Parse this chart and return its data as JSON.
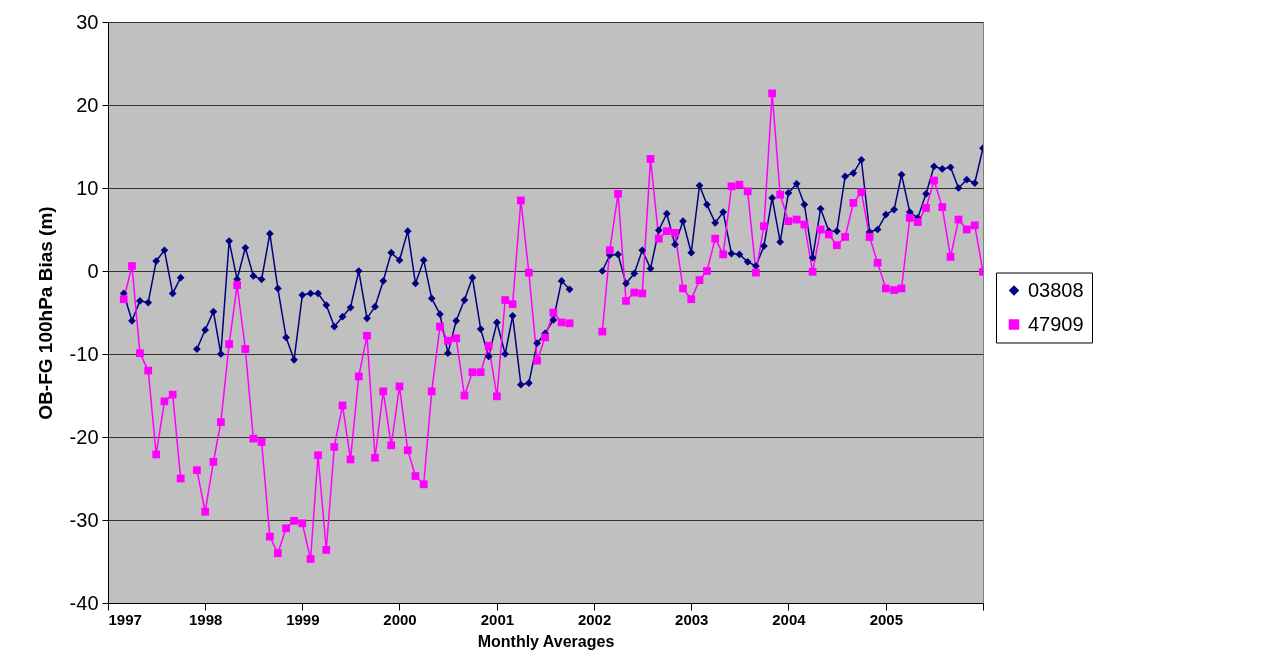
{
  "chart_data": {
    "type": "line",
    "xlabel": "Monthly Averages",
    "ylabel": "OB-FG 100hPa Bias (m)",
    "x": [
      "1997-03",
      "1997-04",
      "1997-05",
      "1997-06",
      "1997-07",
      "1997-08",
      "1997-09",
      "1997-10",
      "1997-11",
      "1997-12",
      "1998-01",
      "1998-02",
      "1998-03",
      "1998-04",
      "1998-05",
      "1998-06",
      "1998-07",
      "1998-08",
      "1998-09",
      "1998-10",
      "1998-11",
      "1998-12",
      "1999-01",
      "1999-02",
      "1999-03",
      "1999-04",
      "1999-05",
      "1999-06",
      "1999-07",
      "1999-08",
      "1999-09",
      "1999-10",
      "1999-11",
      "1999-12",
      "2000-01",
      "2000-02",
      "2000-03",
      "2000-04",
      "2000-05",
      "2000-06",
      "2000-07",
      "2000-08",
      "2000-09",
      "2000-10",
      "2000-11",
      "2000-12",
      "2001-01",
      "2001-02",
      "2001-03",
      "2001-04",
      "2001-05",
      "2001-06",
      "2001-07",
      "2001-08",
      "2001-09",
      "2001-10",
      "2001-11",
      "2001-12",
      "2002-01",
      "2002-02",
      "2002-03",
      "2002-04",
      "2002-05",
      "2002-06",
      "2002-07",
      "2002-08",
      "2002-09",
      "2002-10",
      "2002-11",
      "2002-12",
      "2003-01",
      "2003-02",
      "2003-03",
      "2003-04",
      "2003-05",
      "2003-06",
      "2003-07",
      "2003-08",
      "2003-09",
      "2003-10",
      "2003-11",
      "2003-12",
      "2004-01",
      "2004-02",
      "2004-03",
      "2004-04",
      "2004-05",
      "2004-06",
      "2004-07",
      "2004-08",
      "2004-09",
      "2004-10",
      "2004-11",
      "2004-12",
      "2005-01",
      "2005-02",
      "2005-03",
      "2005-04",
      "2005-05",
      "2005-06",
      "2005-07",
      "2005-08",
      "2005-09",
      "2005-10",
      "2005-11",
      "2005-12",
      "2006-01"
    ],
    "series": [
      {
        "name": "03808",
        "color": "#000080",
        "marker": "diamond",
        "values": [
          -2.7,
          -6.0,
          -3.6,
          -3.8,
          1.2,
          2.5,
          -2.7,
          -0.8,
          null,
          -9.4,
          -7.1,
          -4.9,
          -10.0,
          3.6,
          -1.0,
          2.8,
          -0.6,
          -1.0,
          4.5,
          -2.1,
          -8.0,
          -10.7,
          -2.9,
          -2.7,
          -2.7,
          -4.1,
          -6.7,
          -5.5,
          -4.4,
          0.0,
          -5.7,
          -4.3,
          -1.2,
          2.2,
          1.3,
          4.8,
          -1.5,
          1.3,
          -3.3,
          -5.2,
          -9.9,
          -6.0,
          -3.5,
          -0.8,
          -7.0,
          -10.3,
          -6.2,
          -10.0,
          -5.4,
          -13.7,
          -13.5,
          -8.7,
          -7.5,
          -5.9,
          -1.2,
          -2.2,
          null,
          null,
          null,
          0.0,
          1.9,
          2.0,
          -1.5,
          -0.3,
          2.5,
          0.3,
          4.9,
          6.9,
          3.2,
          6.0,
          2.2,
          10.3,
          8.0,
          5.8,
          7.1,
          2.1,
          2.0,
          1.1,
          0.6,
          3.0,
          8.8,
          3.5,
          9.4,
          10.5,
          8.0,
          1.6,
          7.5,
          4.8,
          4.8,
          11.4,
          11.8,
          13.4,
          4.7,
          5.0,
          6.8,
          7.4,
          11.6,
          7.1,
          6.4,
          9.3,
          12.6,
          12.3,
          12.5,
          10.0,
          11.0,
          10.6,
          14.8
        ]
      },
      {
        "name": "47909",
        "color": "#ff00ff",
        "marker": "square",
        "values": [
          -3.4,
          0.6,
          -9.9,
          -12.0,
          -22.1,
          -15.7,
          -14.9,
          -25.0,
          null,
          -24.0,
          -29.0,
          -23.0,
          -18.2,
          -8.8,
          -1.7,
          -9.4,
          -20.2,
          -20.6,
          -32.0,
          -34.0,
          -31.0,
          -30.1,
          -30.4,
          -34.7,
          -22.2,
          -33.6,
          -21.2,
          -16.2,
          -22.7,
          -12.7,
          -7.8,
          -22.5,
          -14.5,
          -21.0,
          -13.9,
          -21.6,
          -24.7,
          -25.7,
          -14.5,
          -6.7,
          -8.4,
          -8.1,
          -15.0,
          -12.2,
          -12.2,
          -9.0,
          -15.1,
          -3.5,
          -4.0,
          8.5,
          -0.2,
          -10.8,
          -8.0,
          -5.0,
          -6.2,
          -6.3,
          null,
          null,
          null,
          -7.3,
          2.5,
          9.3,
          -3.6,
          -2.6,
          -2.7,
          13.5,
          3.9,
          4.8,
          4.6,
          -2.1,
          -3.4,
          -1.1,
          0.0,
          3.9,
          2.0,
          10.2,
          10.4,
          9.6,
          -0.2,
          5.4,
          21.4,
          9.2,
          6.0,
          6.2,
          5.6,
          -0.1,
          5.0,
          4.4,
          3.1,
          4.1,
          8.2,
          9.5,
          4.1,
          1.0,
          -2.1,
          -2.3,
          -2.1,
          6.4,
          5.9,
          7.6,
          10.9,
          7.7,
          1.7,
          6.2,
          5.0,
          5.5,
          -0.1
        ]
      }
    ],
    "xlim": [
      "1997-01",
      "2006-01"
    ],
    "xticks": [
      {
        "value": "1997-01",
        "label": "1997"
      },
      {
        "value": "1998-01",
        "label": "1998"
      },
      {
        "value": "1999-01",
        "label": "1999"
      },
      {
        "value": "2000-01",
        "label": "2000"
      },
      {
        "value": "2001-01",
        "label": "2001"
      },
      {
        "value": "2002-01",
        "label": "2002"
      },
      {
        "value": "2003-01",
        "label": "2003"
      },
      {
        "value": "2004-01",
        "label": "2004"
      },
      {
        "value": "2005-01",
        "label": "2005"
      },
      {
        "value": "2006-01",
        "label": null
      }
    ],
    "ylim": [
      -40,
      30
    ],
    "yticks": [
      -40,
      -30,
      -20,
      -10,
      0,
      10,
      20,
      30
    ],
    "grid": "y",
    "legend": "right",
    "line_style": "solid"
  }
}
